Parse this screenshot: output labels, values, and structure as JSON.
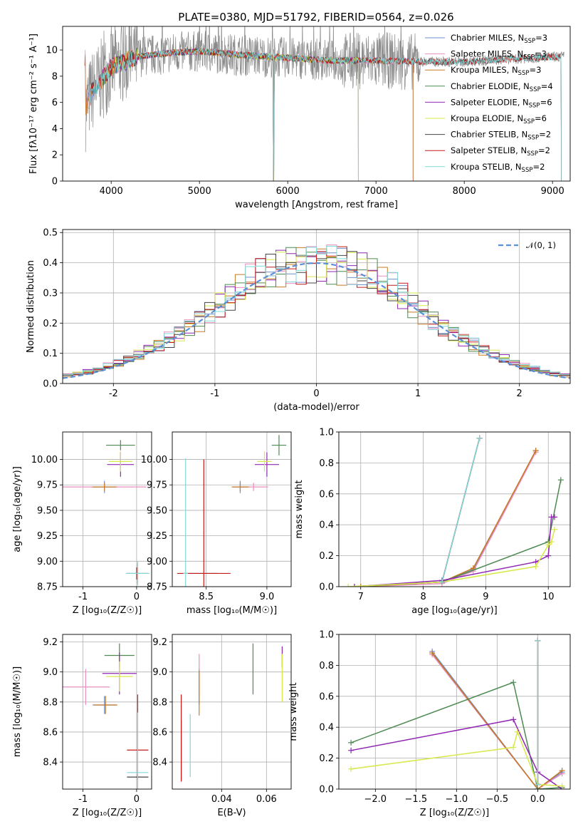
{
  "figure": {
    "title": "PLATE=0380, MJD=51792, FIBERID=0564, z=0.026"
  },
  "colors": {
    "Chabrier MILES": "#6f8fd1",
    "Salpeter MILES": "#e98fbf",
    "Kroupa MILES": "#c77a26",
    "Chabrier ELODIE": "#4d8a52",
    "Salpeter ELODIE": "#8e27b2",
    "Kroupa ELODIE": "#d7e84a",
    "Chabrier STELIB": "#444444",
    "Salpeter STELIB": "#c41a1a",
    "Kroupa STELIB": "#7fd9d9",
    "data": "#8a8a8a",
    "gaussian": "#5b8fd6",
    "grid": "#b0b0b0"
  },
  "chart_data": [
    {
      "type": "line",
      "title": "PLATE=0380, MJD=51792, FIBERID=0564, z=0.026",
      "xlabel": "wavelength [Angstrom, rest frame]",
      "ylabel": "Flux [fλ10⁻¹⁷ erg cm⁻² s⁻¹ A⁻¹]",
      "xlim": [
        3450,
        9200
      ],
      "ylim": [
        0,
        11.8
      ],
      "xticks": [
        4000,
        5000,
        6000,
        7000,
        8000,
        9000
      ],
      "yticks": [
        0,
        2,
        4,
        6,
        8,
        10
      ],
      "grid": false,
      "legend_position": "top-right",
      "legend": [
        {
          "name": "Chabrier MILES",
          "nssp": "3"
        },
        {
          "name": "Salpeter MILES",
          "nssp": "3"
        },
        {
          "name": "Kroupa MILES",
          "nssp": "3"
        },
        {
          "name": "Chabrier ELODIE",
          "nssp": "4"
        },
        {
          "name": "Salpeter ELODIE",
          "nssp": "6"
        },
        {
          "name": "Kroupa ELODIE",
          "nssp": "6"
        },
        {
          "name": "Chabrier STELIB",
          "nssp": "2"
        },
        {
          "name": "Salpeter STELIB",
          "nssp": "2"
        },
        {
          "name": "Kroupa STELIB",
          "nssp": "2"
        }
      ],
      "legend_prefix": "N",
      "legend_sub": "SSP",
      "data_range": [
        3710,
        9130
      ],
      "continuum": [
        [
          3710,
          5.4
        ],
        [
          3780,
          6.8
        ],
        [
          3900,
          7.8
        ],
        [
          4000,
          8.7
        ],
        [
          4300,
          9.5
        ],
        [
          4700,
          9.8
        ],
        [
          5000,
          9.9
        ],
        [
          5500,
          9.6
        ],
        [
          6000,
          9.4
        ],
        [
          6500,
          9.2
        ],
        [
          7000,
          9.2
        ],
        [
          7500,
          9.1
        ],
        [
          8000,
          9.1
        ],
        [
          8500,
          9.3
        ],
        [
          9100,
          9.5
        ]
      ],
      "model_coverage": {
        "MILES": [
          3700,
          7420
        ],
        "ELODIE": [
          3900,
          6800
        ],
        "STELIB": [
          3750,
          9100
        ]
      },
      "model_gaps": [
        5840
      ]
    },
    {
      "type": "line",
      "xlabel": "(data-model)/error",
      "ylabel": "Normed distribution",
      "xlim": [
        -2.5,
        2.5
      ],
      "ylim": [
        0,
        0.51
      ],
      "xticks": [
        -2,
        -1,
        0,
        1,
        2
      ],
      "yticks": [
        0.0,
        0.1,
        0.2,
        0.3,
        0.4,
        0.5
      ],
      "grid": true,
      "legend_position": "top-right",
      "legend": [
        {
          "name": "𝒩(0, 1)",
          "style": "dashed"
        }
      ],
      "bin_width": 0.1,
      "series": [
        {
          "name": "Chabrier MILES",
          "offset": 0.008,
          "phase": 0.3
        },
        {
          "name": "Salpeter MILES",
          "offset": 0.012,
          "phase": 1.1
        },
        {
          "name": "Kroupa MILES",
          "offset": 0.004,
          "phase": 2.2
        },
        {
          "name": "Chabrier ELODIE",
          "offset": 0.006,
          "phase": 3.0
        },
        {
          "name": "Salpeter ELODIE",
          "offset": 0.01,
          "phase": 3.9
        },
        {
          "name": "Kroupa ELODIE",
          "offset": 0.009,
          "phase": 4.7
        },
        {
          "name": "Chabrier STELIB",
          "offset": 0.005,
          "phase": 5.5
        },
        {
          "name": "Salpeter STELIB",
          "offset": 0.007,
          "phase": 6.3
        },
        {
          "name": "Kroupa STELIB",
          "offset": 0.011,
          "phase": 7.1
        }
      ]
    },
    {
      "type": "scatter",
      "xlabel": "Z [log₁₀(Z/Z☉)]",
      "ylabel": "age  [log₁₀(age/yr)]",
      "xlim": [
        -1.38,
        0.28
      ],
      "ylim": [
        8.75,
        10.27
      ],
      "xticks": [
        -1,
        0
      ],
      "yticks": [
        8.75,
        9.0,
        9.25,
        9.5,
        9.75,
        10.0
      ],
      "grid": true,
      "points": [
        {
          "series": "Chabrier MILES",
          "x": -0.6,
          "y": 9.73,
          "xerr": 0.25,
          "yerr": 0.06
        },
        {
          "series": "Salpeter MILES",
          "x": -0.6,
          "y": 9.73,
          "xerr": 0.78,
          "yerr": 0.04
        },
        {
          "series": "Kroupa MILES",
          "x": -0.6,
          "y": 9.73,
          "xerr": 0.22,
          "yerr": 0.04
        },
        {
          "series": "Chabrier ELODIE",
          "x": -0.3,
          "y": 10.14,
          "xerr": 0.27,
          "yerr": 0.05
        },
        {
          "series": "Salpeter ELODIE",
          "x": -0.3,
          "y": 9.95,
          "xerr": 0.25,
          "yerr": 0.12
        },
        {
          "series": "Kroupa ELODIE",
          "x": -0.3,
          "y": 9.98,
          "xerr": 0.22,
          "yerr": 0.1
        },
        {
          "series": "Chabrier STELIB",
          "x": 0.02,
          "y": 8.88,
          "xerr": 0.2,
          "yerr": 0.1
        },
        {
          "series": "Salpeter STELIB",
          "x": 0.0,
          "y": 8.88,
          "xerr": 0.01,
          "yerr": 0.06
        },
        {
          "series": "Kroupa STELIB",
          "x": 0.02,
          "y": 8.88,
          "xerr": 0.22,
          "yerr": 0.12
        }
      ]
    },
    {
      "type": "scatter",
      "xlabel": "mass [log₁₀(M/M☉)]",
      "ylabel": "",
      "xlim": [
        8.22,
        9.2
      ],
      "ylim": [
        8.75,
        10.27
      ],
      "xticks": [
        8.5,
        9.0
      ],
      "yticks": [
        8.75,
        9.0,
        9.25,
        9.5,
        9.75,
        10.0
      ],
      "grid": true,
      "points": [
        {
          "series": "Chabrier MILES",
          "x": 8.78,
          "y": 9.73,
          "xerr": 0.06,
          "yerr": 0.06
        },
        {
          "series": "Salpeter MILES",
          "x": 8.89,
          "y": 9.73,
          "xerr": 0.12,
          "yerr": 0.04
        },
        {
          "series": "Kroupa MILES",
          "x": 8.78,
          "y": 9.73,
          "xerr": 0.07,
          "yerr": 0.04
        },
        {
          "series": "Chabrier ELODIE",
          "x": 9.1,
          "y": 10.14,
          "xerr": 0.06,
          "yerr": 0.1
        },
        {
          "series": "Salpeter ELODIE",
          "x": 9.0,
          "y": 9.95,
          "xerr": 0.1,
          "yerr": 0.12
        },
        {
          "series": "Kroupa ELODIE",
          "x": 8.98,
          "y": 9.98,
          "xerr": 0.06,
          "yerr": 0.1
        },
        {
          "series": "Chabrier STELIB",
          "x": 8.45,
          "y": 8.88,
          "xerr": 0.14,
          "yerr": 0.0
        },
        {
          "series": "Salpeter STELIB",
          "x": 8.48,
          "y": 8.88,
          "xerr": 0.22,
          "yerr": 1.12
        },
        {
          "series": "Kroupa STELIB",
          "x": 8.33,
          "y": 8.88,
          "xerr": 0.02,
          "yerr": 1.13
        }
      ]
    },
    {
      "type": "line",
      "xlabel": "age  [log₁₀(age/yr)]",
      "ylabel": "mass weight",
      "xlim": [
        6.65,
        10.35
      ],
      "ylim": [
        0,
        1.0
      ],
      "xticks": [
        7,
        8,
        9,
        10
      ],
      "yticks": [
        0.0,
        0.2,
        0.4,
        0.6,
        0.8,
        1.0
      ],
      "grid": true,
      "series": [
        {
          "name": "Chabrier MILES",
          "x": [
            7.0,
            8.3,
            8.8,
            9.8
          ],
          "y": [
            0.0,
            0.03,
            0.11,
            0.88
          ]
        },
        {
          "name": "Salpeter MILES",
          "x": [
            7.0,
            8.3,
            8.8,
            9.8
          ],
          "y": [
            0.0,
            0.02,
            0.1,
            0.87
          ]
        },
        {
          "name": "Kroupa MILES",
          "x": [
            7.0,
            8.3,
            8.8,
            9.8
          ],
          "y": [
            0.0,
            0.03,
            0.12,
            0.88
          ]
        },
        {
          "name": "Chabrier ELODIE",
          "x": [
            6.9,
            8.3,
            10.0,
            10.2
          ],
          "y": [
            0.0,
            0.03,
            0.29,
            0.69
          ]
        },
        {
          "name": "Salpeter ELODIE",
          "x": [
            6.9,
            8.3,
            9.8,
            10.0,
            10.05,
            10.1
          ],
          "y": [
            0.0,
            0.04,
            0.16,
            0.2,
            0.45,
            0.45
          ]
        },
        {
          "name": "Kroupa ELODIE",
          "x": [
            6.8,
            8.3,
            9.8,
            10.0,
            10.05,
            10.1
          ],
          "y": [
            0.0,
            0.03,
            0.13,
            0.27,
            0.29,
            0.37
          ]
        },
        {
          "name": "Chabrier STELIB",
          "x": [
            8.3,
            8.9
          ],
          "y": [
            0.03,
            0.96
          ]
        },
        {
          "name": "Salpeter STELIB",
          "x": [
            8.3,
            8.9
          ],
          "y": [
            0.03,
            0.96
          ]
        },
        {
          "name": "Kroupa STELIB",
          "x": [
            8.3,
            8.9
          ],
          "y": [
            0.03,
            0.96
          ]
        }
      ]
    },
    {
      "type": "scatter",
      "xlabel": "Z [log₁₀(Z/Z☉)]",
      "ylabel": "mass [log₁₀(M/M☉)]",
      "xlim": [
        -1.38,
        0.28
      ],
      "ylim": [
        8.22,
        9.25
      ],
      "xticks": [
        -1,
        0
      ],
      "yticks": [
        8.4,
        8.6,
        8.8,
        9.0,
        9.2
      ],
      "grid": true,
      "points": [
        {
          "series": "Chabrier MILES",
          "x": -0.6,
          "y": 8.78,
          "xerr": 0.22,
          "yerr": 0.06
        },
        {
          "series": "Salpeter MILES",
          "x": -0.95,
          "y": 8.9,
          "xerr": 0.45,
          "yerr": 0.12
        },
        {
          "series": "Kroupa MILES",
          "x": -0.58,
          "y": 8.78,
          "xerr": 0.22,
          "yerr": 0.06
        },
        {
          "series": "Chabrier ELODIE",
          "x": -0.32,
          "y": 9.11,
          "xerr": 0.28,
          "yerr": 0.08
        },
        {
          "series": "Salpeter ELODIE",
          "x": -0.32,
          "y": 8.99,
          "xerr": 0.32,
          "yerr": 0.14
        },
        {
          "series": "Kroupa ELODIE",
          "x": -0.32,
          "y": 8.97,
          "xerr": 0.25,
          "yerr": 0.1
        },
        {
          "series": "Chabrier STELIB",
          "x": 0.02,
          "y": 8.3,
          "xerr": 0.2,
          "yerr": 0.02
        },
        {
          "series": "Salpeter STELIB",
          "x": 0.02,
          "y": 8.48,
          "xerr": 0.2,
          "yerr": 0.37
        },
        {
          "series": "Kroupa STELIB",
          "x": 0.02,
          "y": 8.33,
          "xerr": 0.2,
          "yerr": 0.4
        }
      ]
    },
    {
      "type": "scatter",
      "xlabel": "E(B-V)",
      "ylabel": "",
      "xlim": [
        0.018,
        0.071
      ],
      "ylim": [
        8.22,
        9.25
      ],
      "xticks": [
        0.04,
        0.06
      ],
      "yticks": [
        8.4,
        8.6,
        8.8,
        9.0,
        9.2
      ],
      "grid": true,
      "points": [
        {
          "series": "Chabrier MILES",
          "x": 0.03,
          "y": 8.9,
          "xerr": 0.0,
          "yerr": 0.12
        },
        {
          "series": "Salpeter MILES",
          "x": 0.03,
          "y": 8.98,
          "xerr": 0.0,
          "yerr": 0.14
        },
        {
          "series": "Kroupa MILES",
          "x": 0.03,
          "y": 8.86,
          "xerr": 0.0,
          "yerr": 0.15
        },
        {
          "series": "Chabrier ELODIE",
          "x": 0.054,
          "y": 9.02,
          "xerr": 0.0,
          "yerr": 0.17
        },
        {
          "series": "Salpeter ELODIE",
          "x": 0.067,
          "y": 9.1,
          "xerr": 0.0,
          "yerr": 0.07
        },
        {
          "series": "Kroupa ELODIE",
          "x": 0.067,
          "y": 8.96,
          "xerr": 0.0,
          "yerr": 0.16
        },
        {
          "series": "Chabrier STELIB",
          "x": 0.022,
          "y": 8.48,
          "xerr": 0.0,
          "yerr": 0.2
        },
        {
          "series": "Salpeter STELIB",
          "x": 0.022,
          "y": 8.56,
          "xerr": 0.0,
          "yerr": 0.29
        },
        {
          "series": "Kroupa STELIB",
          "x": 0.026,
          "y": 8.51,
          "xerr": 0.0,
          "yerr": 0.21
        }
      ]
    },
    {
      "type": "line",
      "xlabel": "Z [log₁₀(Z/Z☉)]",
      "ylabel": "mass weight",
      "xlim": [
        -2.45,
        0.4
      ],
      "ylim": [
        0,
        1.0
      ],
      "xticks": [
        -2.0,
        -1.5,
        -1.0,
        -0.5,
        0.0
      ],
      "yticks": [
        0.0,
        0.2,
        0.4,
        0.6,
        0.8,
        1.0
      ],
      "grid": true,
      "series": [
        {
          "name": "Chabrier MILES",
          "x": [
            -1.3,
            0.0,
            0.3
          ],
          "y": [
            0.89,
            0.0,
            0.11
          ]
        },
        {
          "name": "Salpeter MILES",
          "x": [
            -1.3,
            0.0,
            0.3
          ],
          "y": [
            0.87,
            0.0,
            0.1
          ]
        },
        {
          "name": "Kroupa MILES",
          "x": [
            -1.3,
            0.0,
            0.3
          ],
          "y": [
            0.88,
            0.0,
            0.12
          ]
        },
        {
          "name": "Chabrier ELODIE",
          "x": [
            -2.3,
            -0.3,
            0.0,
            0.3
          ],
          "y": [
            0.3,
            0.69,
            0.0,
            0.01
          ]
        },
        {
          "name": "Salpeter ELODIE",
          "x": [
            -2.3,
            -0.3,
            0.0,
            0.3
          ],
          "y": [
            0.25,
            0.45,
            0.11,
            0.0
          ]
        },
        {
          "name": "Kroupa ELODIE",
          "x": [
            -2.3,
            -0.3,
            -0.25,
            0.0,
            0.3
          ],
          "y": [
            0.13,
            0.27,
            0.37,
            0.03,
            0.02
          ]
        },
        {
          "name": "Chabrier STELIB",
          "x": [
            0.0,
            0.0
          ],
          "y": [
            0.03,
            0.96
          ]
        },
        {
          "name": "Salpeter STELIB",
          "x": [
            0.0,
            0.0
          ],
          "y": [
            0.03,
            0.96
          ]
        },
        {
          "name": "Kroupa STELIB",
          "x": [
            0.0,
            0.0
          ],
          "y": [
            0.03,
            0.96
          ]
        }
      ]
    }
  ]
}
